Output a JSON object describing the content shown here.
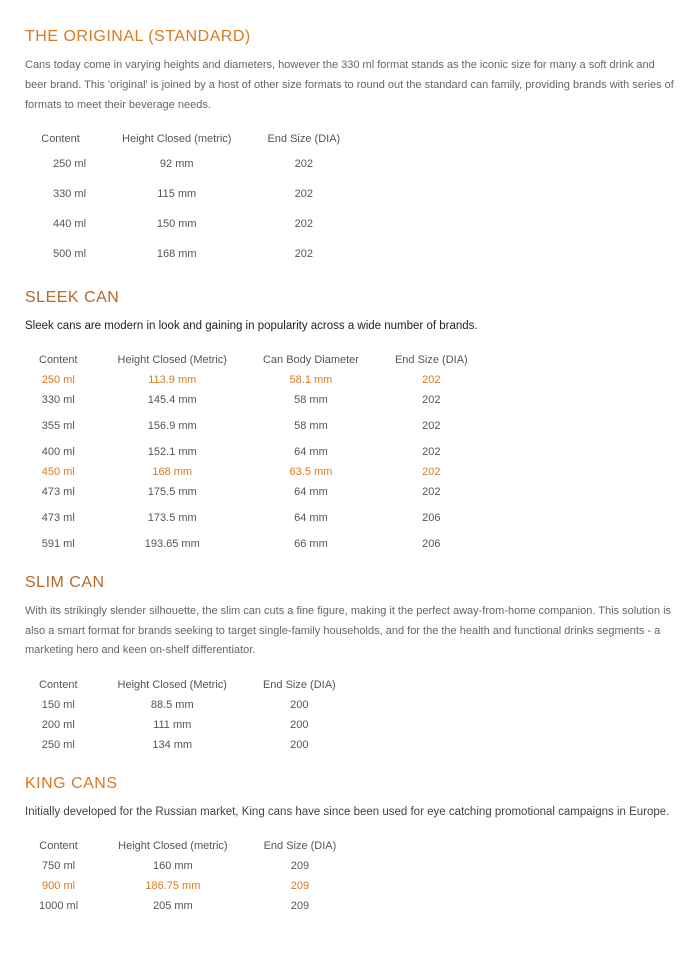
{
  "colors": {
    "accent": "#d97a1f",
    "heading_medium": "#b56a2a",
    "text_strong": "#222222",
    "text_muted": "#666666",
    "background": "#ffffff"
  },
  "sections": {
    "original": {
      "heading": "THE ORIGINAL (STANDARD)",
      "heading_color": "#d97a1f",
      "desc": "Cans today come in varying heights and diameters, however the 330 ml format stands as the iconic size for many a soft drink and beer brand. This 'original' is joined by a host of other size formats to round out the standard can family, providing brands with series of formats to meet their beverage needs.",
      "desc_strong": false,
      "columns": [
        "Content",
        "Height Closed (metric)",
        "End Size (DIA)"
      ],
      "rows": [
        {
          "cells": [
            "250 ml",
            "92 mm",
            "202"
          ],
          "highlight": false
        },
        {
          "cells": [
            "330 ml",
            "115 mm",
            "202"
          ],
          "highlight": false
        },
        {
          "cells": [
            "440 ml",
            "150 mm",
            "202"
          ],
          "highlight": false
        },
        {
          "cells": [
            "500 ml",
            "168 mm",
            "202"
          ],
          "highlight": false
        }
      ],
      "table_spacing": "spaced"
    },
    "sleek": {
      "heading": "SLEEK CAN",
      "heading_color": "#b56a2a",
      "desc": "Sleek cans are modern in look and gaining in popularity across a wide number of brands.",
      "desc_strong": true,
      "columns": [
        "Content",
        "Height Closed (Metric)",
        "Can Body Diameter",
        "End Size (DIA)"
      ],
      "rows": [
        {
          "cells": [
            "250 ml",
            "113.9 mm",
            "58.1 mm",
            "202"
          ],
          "highlight": true
        },
        {
          "cells": [
            "330 ml",
            "145.4 mm",
            "58 mm",
            "202"
          ],
          "highlight": false
        },
        {
          "cells": [
            "355 ml",
            "156.9 mm",
            "58 mm",
            "202"
          ],
          "highlight": false,
          "gap": true
        },
        {
          "cells": [
            "400 ml",
            "152.1 mm",
            "64 mm",
            "202"
          ],
          "highlight": false,
          "gap": true
        },
        {
          "cells": [
            "450 ml",
            "168 mm",
            "63.5 mm",
            "202"
          ],
          "highlight": true
        },
        {
          "cells": [
            "473 ml",
            "175.5 mm",
            "64 mm",
            "202"
          ],
          "highlight": false
        },
        {
          "cells": [
            "473 ml",
            "173.5 mm",
            "64 mm",
            "206"
          ],
          "highlight": false,
          "gap": true
        },
        {
          "cells": [
            "591 ml",
            "193.65 mm",
            "66 mm",
            "206"
          ],
          "highlight": false,
          "gap": true
        }
      ],
      "table_spacing": "tight"
    },
    "slim": {
      "heading": "SLIM CAN",
      "heading_color": "#b56a2a",
      "desc": "With its strikingly slender silhouette, the slim can cuts a fine figure, making it the perfect away-from-home companion. This solution is also a smart format for brands seeking to target single-family households, and for the the health and functional drinks segments - a marketing hero and keen on-shelf differentiator.",
      "desc_strong": false,
      "columns": [
        "Content",
        "Height Closed (Metric)",
        "End Size (DIA)"
      ],
      "rows": [
        {
          "cells": [
            "150 ml",
            "88.5 mm",
            "200"
          ],
          "highlight": false
        },
        {
          "cells": [
            "200 ml",
            "111 mm",
            "200"
          ],
          "highlight": false
        },
        {
          "cells": [
            "250 ml",
            "134 mm",
            "200"
          ],
          "highlight": false
        }
      ],
      "table_spacing": "tight"
    },
    "king": {
      "heading": "KING CANS",
      "heading_color": "#d97a1f",
      "desc": "Initially developed for the Russian market, King cans have since been used for eye catching promotional campaigns in Europe.",
      "desc_strong": true,
      "columns": [
        "Content",
        "Height Closed (metric)",
        "End Size (DIA)"
      ],
      "rows": [
        {
          "cells": [
            "750 ml",
            "160 mm",
            "209"
          ],
          "highlight": false
        },
        {
          "cells": [
            "900 ml",
            "186.75 mm",
            "209"
          ],
          "highlight": true
        },
        {
          "cells": [
            "1000 ml",
            "205 mm",
            "209"
          ],
          "highlight": false
        }
      ],
      "table_spacing": "tight"
    }
  }
}
